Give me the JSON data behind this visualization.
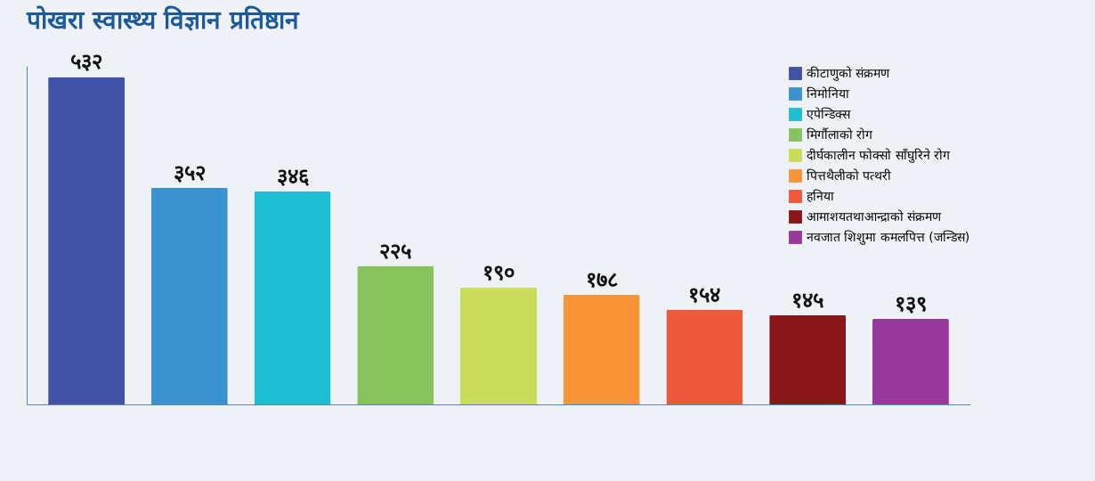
{
  "chart_data": {
    "type": "bar",
    "title": "पोखरा स्वास्थ्य विज्ञान प्रतिष्ठान",
    "categories": [
      null,
      null,
      null,
      null,
      null,
      null,
      null,
      null,
      null
    ],
    "series": [
      {
        "name": "कीटाणुको संक्रमण",
        "color": "#4152a6",
        "values": [
          532,
          null,
          null,
          null,
          null,
          null,
          null,
          null,
          null
        ],
        "value_labels": [
          "५३२",
          null,
          null,
          null,
          null,
          null,
          null,
          null,
          null
        ]
      },
      {
        "name": "निमोनिया",
        "color": "#3a92d1",
        "values": [
          null,
          352,
          null,
          null,
          null,
          null,
          null,
          null,
          null
        ],
        "value_labels": [
          null,
          "३५२",
          null,
          null,
          null,
          null,
          null,
          null,
          null
        ]
      },
      {
        "name": "एपेन्डिक्स",
        "color": "#1dbdd4",
        "values": [
          null,
          null,
          346,
          null,
          null,
          null,
          null,
          null,
          null
        ],
        "value_labels": [
          null,
          null,
          "३४६",
          null,
          null,
          null,
          null,
          null,
          null
        ]
      },
      {
        "name": "मिर्गौलाको रोग",
        "color": "#86c35c",
        "values": [
          null,
          null,
          null,
          225,
          null,
          null,
          null,
          null,
          null
        ],
        "value_labels": [
          null,
          null,
          null,
          "२२५",
          null,
          null,
          null,
          null,
          null
        ]
      },
      {
        "name": "दीर्घकालीन फोक्सो साँघुरिने रोग",
        "color": "#cadd5b",
        "values": [
          null,
          null,
          null,
          null,
          190,
          null,
          null,
          null,
          null
        ],
        "value_labels": [
          null,
          null,
          null,
          null,
          "१९०",
          null,
          null,
          null,
          null
        ]
      },
      {
        "name": "पित्तथैलीको पत्थरी",
        "color": "#f79536",
        "values": [
          null,
          null,
          null,
          null,
          null,
          178,
          null,
          null,
          null
        ],
        "value_labels": [
          null,
          null,
          null,
          null,
          null,
          "१७८",
          null,
          null,
          null
        ]
      },
      {
        "name": "हनिया",
        "color": "#ef583a",
        "values": [
          null,
          null,
          null,
          null,
          null,
          null,
          154,
          null,
          null
        ],
        "value_labels": [
          null,
          null,
          null,
          null,
          null,
          null,
          "१५४",
          null,
          null
        ]
      },
      {
        "name": "आमाशयतथाआन्द्राको संक्रमण",
        "color": "#89171a",
        "values": [
          null,
          null,
          null,
          null,
          null,
          null,
          null,
          145,
          null
        ],
        "value_labels": [
          null,
          null,
          null,
          null,
          null,
          null,
          null,
          "१४५",
          null
        ]
      },
      {
        "name": "नवजात शिशुमा कमलपित्त (जन्डिस)",
        "color": "#96399a",
        "values": [
          null,
          null,
          null,
          null,
          null,
          null,
          null,
          null,
          139
        ],
        "value_labels": [
          null,
          null,
          null,
          null,
          null,
          null,
          null,
          null,
          "१३९"
        ]
      }
    ],
    "stacked": true,
    "legend": "top right",
    "tick_labels": false,
    "grid": false
  }
}
